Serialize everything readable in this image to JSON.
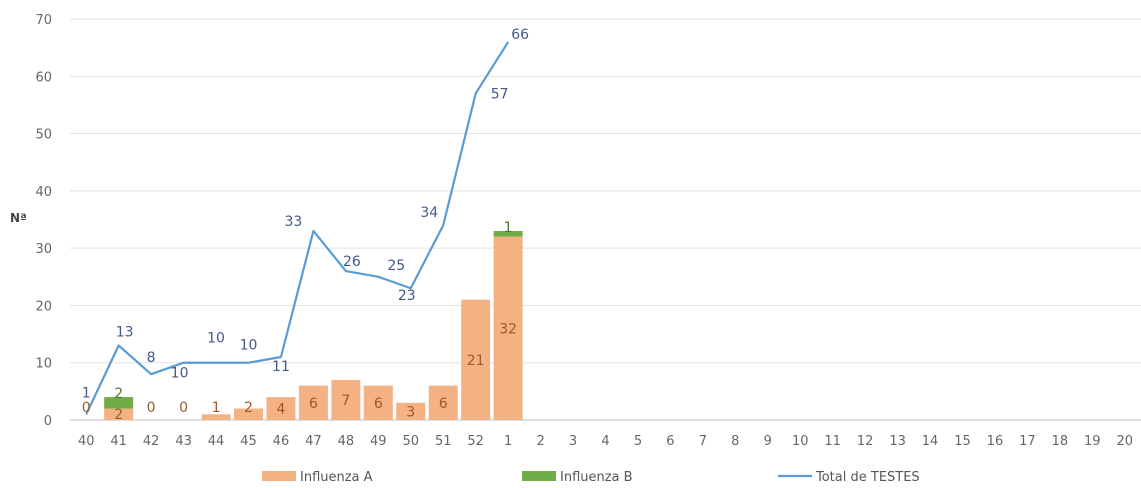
{
  "chart_data": {
    "type": "bar",
    "title": "",
    "xlabel": "",
    "ylabel": "Nª",
    "ylim": [
      0,
      70
    ],
    "yticks": [
      0,
      10,
      20,
      30,
      40,
      50,
      60,
      70
    ],
    "grid": true,
    "legend_position": "bottom",
    "categories": [
      "40",
      "41",
      "42",
      "43",
      "44",
      "45",
      "46",
      "47",
      "48",
      "49",
      "50",
      "51",
      "52",
      "1",
      "2",
      "3",
      "4",
      "5",
      "6",
      "7",
      "8",
      "9",
      "10",
      "11",
      "12",
      "13",
      "14",
      "15",
      "16",
      "17",
      "18",
      "19",
      "20"
    ],
    "series": [
      {
        "name": "Influenza A",
        "type": "bar",
        "color": "#f4b183",
        "values": [
          0,
          2,
          0,
          0,
          1,
          2,
          4,
          6,
          7,
          6,
          3,
          6,
          21,
          32,
          null,
          null,
          null,
          null,
          null,
          null,
          null,
          null,
          null,
          null,
          null,
          null,
          null,
          null,
          null,
          null,
          null,
          null,
          null
        ]
      },
      {
        "name": "Influenza B",
        "type": "bar",
        "color": "#70ad47",
        "values": [
          null,
          2,
          null,
          null,
          null,
          null,
          null,
          null,
          null,
          null,
          null,
          null,
          null,
          1,
          null,
          null,
          null,
          null,
          null,
          null,
          null,
          null,
          null,
          null,
          null,
          null,
          null,
          null,
          null,
          null,
          null,
          null,
          null
        ]
      },
      {
        "name": "Total de TESTES",
        "type": "line",
        "color": "#5b9bd5",
        "values": [
          1,
          13,
          8,
          10,
          10,
          10,
          11,
          33,
          26,
          25,
          23,
          34,
          57,
          66,
          null,
          null,
          null,
          null,
          null,
          null,
          null,
          null,
          null,
          null,
          null,
          null,
          null,
          null,
          null,
          null,
          null,
          null,
          null
        ]
      }
    ]
  }
}
